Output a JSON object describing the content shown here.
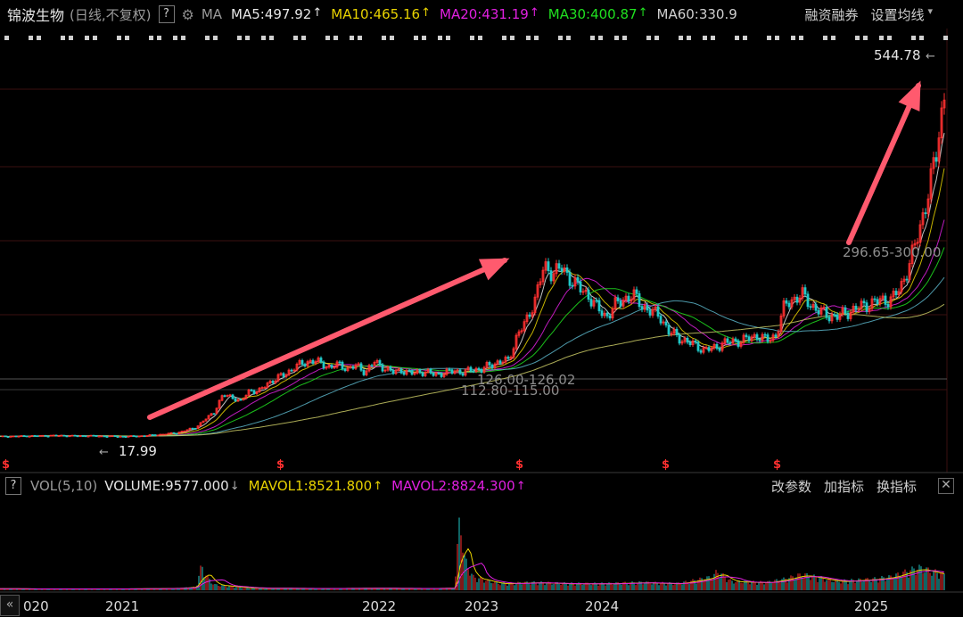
{
  "header": {
    "stock_name": "锦波生物",
    "period_label": "(日线,不复权)",
    "help_label": "?",
    "gear_icon": "gear-icon",
    "ma_label": "MA",
    "ma_items": [
      {
        "label": "MA5:497.92",
        "color": "#e6e6e6",
        "arrow": "↑"
      },
      {
        "label": "MA10:465.16",
        "color": "#e8d200",
        "arrow": "↑"
      },
      {
        "label": "MA20:431.19",
        "color": "#e020e0",
        "arrow": "↑"
      },
      {
        "label": "MA30:400.87",
        "color": "#20e020",
        "arrow": "↑"
      },
      {
        "label": "MA60:330.9",
        "color": "#cfcfcf",
        "arrow": ""
      }
    ],
    "tool_margin": "融资融券",
    "tool_ma_setting": "设置均线",
    "dropdown_icon": "▾"
  },
  "volume_header": {
    "help_label": "?",
    "title": "VOL(5,10)",
    "volume": "VOLUME:9577.000",
    "volume_arrow": "↓",
    "mavol1": "MAVOL1:8521.800",
    "mavol1_arrow": "↑",
    "mavol2": "MAVOL2:8824.300",
    "mavol2_arrow": "↑",
    "btn_params": "改参数",
    "btn_add_indicator": "加指标",
    "btn_switch_indicator": "换指标",
    "close_label": "✕"
  },
  "colors": {
    "background": "#000000",
    "up": "#ff3030",
    "down": "#20c8c8",
    "ma5": "#e6e6e6",
    "ma10": "#e8d200",
    "ma20": "#e020e0",
    "ma30": "#20e020",
    "ma60": "#5ab4c8",
    "ma120": "#c8c864",
    "arrow": "#ff5a6e",
    "dividend_marker": "#ff3030",
    "grid": "#3a1010"
  },
  "chart_data": {
    "type": "line",
    "ylim": [
      0,
      600
    ],
    "x_axis_labels": [
      "020",
      "2021",
      "2022",
      "2023",
      "2024",
      "2025"
    ],
    "price_series": [
      [
        0,
        18
      ],
      [
        20,
        18.5
      ],
      [
        40,
        19
      ],
      [
        60,
        19.5
      ],
      [
        80,
        19
      ],
      [
        100,
        19
      ],
      [
        120,
        18.5
      ],
      [
        140,
        17.99
      ],
      [
        160,
        19
      ],
      [
        180,
        21
      ],
      [
        200,
        24
      ],
      [
        220,
        32
      ],
      [
        240,
        55
      ],
      [
        250,
        80
      ],
      [
        260,
        78
      ],
      [
        270,
        70
      ],
      [
        280,
        88
      ],
      [
        290,
        85
      ],
      [
        300,
        98
      ],
      [
        310,
        105
      ],
      [
        320,
        112
      ],
      [
        330,
        122
      ],
      [
        340,
        128
      ],
      [
        350,
        132
      ],
      [
        360,
        128
      ],
      [
        370,
        122
      ],
      [
        380,
        126
      ],
      [
        390,
        120
      ],
      [
        400,
        124
      ],
      [
        410,
        115
      ],
      [
        420,
        130
      ],
      [
        430,
        122
      ],
      [
        440,
        114
      ],
      [
        450,
        118
      ],
      [
        460,
        112
      ],
      [
        470,
        116
      ],
      [
        480,
        113
      ],
      [
        490,
        112
      ],
      [
        500,
        113
      ],
      [
        510,
        118
      ],
      [
        520,
        112.8
      ],
      [
        530,
        120
      ],
      [
        540,
        118
      ],
      [
        550,
        126
      ],
      [
        560,
        130
      ],
      [
        570,
        132
      ],
      [
        580,
        170
      ],
      [
        590,
        190
      ],
      [
        600,
        225
      ],
      [
        610,
        272
      ],
      [
        620,
        265
      ],
      [
        630,
        270
      ],
      [
        640,
        255
      ],
      [
        650,
        240
      ],
      [
        660,
        230
      ],
      [
        670,
        210
      ],
      [
        680,
        198
      ],
      [
        690,
        215
      ],
      [
        700,
        225
      ],
      [
        710,
        230
      ],
      [
        720,
        215
      ],
      [
        730,
        205
      ],
      [
        740,
        200
      ],
      [
        750,
        175
      ],
      [
        760,
        168
      ],
      [
        770,
        160
      ],
      [
        780,
        155
      ],
      [
        790,
        148
      ],
      [
        800,
        150
      ],
      [
        810,
        158
      ],
      [
        820,
        160
      ],
      [
        830,
        162
      ],
      [
        840,
        165
      ],
      [
        850,
        170
      ],
      [
        860,
        162
      ],
      [
        870,
        170
      ],
      [
        880,
        215
      ],
      [
        890,
        225
      ],
      [
        900,
        230
      ],
      [
        910,
        215
      ],
      [
        920,
        205
      ],
      [
        930,
        200
      ],
      [
        940,
        198
      ],
      [
        950,
        205
      ],
      [
        960,
        210
      ],
      [
        970,
        215
      ],
      [
        980,
        220
      ],
      [
        990,
        222
      ],
      [
        1000,
        225
      ],
      [
        1010,
        240
      ],
      [
        1020,
        280
      ],
      [
        1030,
        320
      ],
      [
        1040,
        380
      ],
      [
        1050,
        440
      ],
      [
        1060,
        544.78
      ]
    ],
    "high_label": "544.78",
    "low_label": "17.99",
    "annotations": [
      "296.65-300.00",
      "126.00-126.02",
      "112.80-115.00"
    ],
    "volume_series": [
      [
        0,
        1.5
      ],
      [
        40,
        1.2
      ],
      [
        80,
        1.3
      ],
      [
        120,
        1.2
      ],
      [
        160,
        1.4
      ],
      [
        200,
        1.8
      ],
      [
        220,
        3.0
      ],
      [
        226,
        22
      ],
      [
        232,
        12
      ],
      [
        240,
        5
      ],
      [
        280,
        2.0
      ],
      [
        320,
        1.8
      ],
      [
        360,
        1.6
      ],
      [
        400,
        1.8
      ],
      [
        440,
        1.8
      ],
      [
        480,
        1.6
      ],
      [
        510,
        2.0
      ],
      [
        516,
        70
      ],
      [
        520,
        30
      ],
      [
        530,
        12
      ],
      [
        560,
        6
      ],
      [
        600,
        7
      ],
      [
        640,
        6
      ],
      [
        680,
        6
      ],
      [
        720,
        7
      ],
      [
        760,
        6
      ],
      [
        800,
        12
      ],
      [
        804,
        17
      ],
      [
        820,
        8
      ],
      [
        860,
        7
      ],
      [
        880,
        10
      ],
      [
        900,
        14
      ],
      [
        940,
        8
      ],
      [
        980,
        10
      ],
      [
        1000,
        12
      ],
      [
        1030,
        20
      ],
      [
        1060,
        14
      ]
    ],
    "volume_ylim": [
      0,
      75
    ]
  }
}
